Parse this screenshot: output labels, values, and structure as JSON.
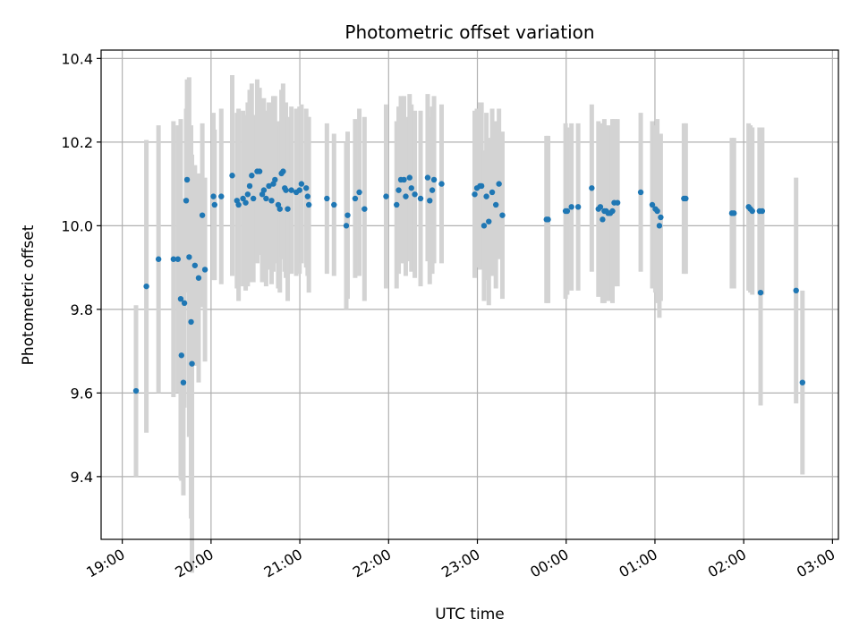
{
  "chart_data": {
    "type": "scatter",
    "title": "Photometric offset variation",
    "xlabel": "UTC time",
    "ylabel": "Photometric offset",
    "x_ticks": [
      {
        "t": 0,
        "label": "19:00"
      },
      {
        "t": 60,
        "label": "20:00"
      },
      {
        "t": 120,
        "label": "21:00"
      },
      {
        "t": 180,
        "label": "22:00"
      },
      {
        "t": 240,
        "label": "23:00"
      },
      {
        "t": 300,
        "label": "00:00"
      },
      {
        "t": 360,
        "label": "01:00"
      },
      {
        "t": 420,
        "label": "02:00"
      },
      {
        "t": 480,
        "label": "03:00"
      }
    ],
    "y_ticks": [
      9.4,
      9.6,
      9.8,
      10.0,
      10.2,
      10.4
    ],
    "xlim": [
      -14.3,
      484
    ],
    "ylim": [
      9.25,
      10.42
    ],
    "grid": true,
    "colors": {
      "points": "#1f77b4",
      "errorbars": "#d3d3d3",
      "grid": "#b0b0b0"
    },
    "points": [
      [
        9.3,
        9.605,
        0.205
      ],
      [
        16.3,
        9.855,
        0.35
      ],
      [
        24.5,
        9.92,
        0.32
      ],
      [
        34.6,
        9.92,
        0.33
      ],
      [
        37.6,
        9.92,
        0.32
      ],
      [
        39.5,
        9.825,
        0.43
      ],
      [
        40.0,
        9.69,
        0.3
      ],
      [
        41.3,
        9.625,
        0.27
      ],
      [
        42.0,
        9.815,
        0.25
      ],
      [
        43.2,
        10.06,
        0.22
      ],
      [
        43.8,
        10.11,
        0.24
      ],
      [
        45.2,
        9.925,
        0.43
      ],
      [
        46.5,
        9.77,
        0.47
      ],
      [
        47.1,
        9.67,
        0.5
      ],
      [
        49.1,
        9.905,
        0.24
      ],
      [
        51.6,
        9.875,
        0.25
      ],
      [
        54.1,
        10.025,
        0.22
      ],
      [
        55.9,
        9.895,
        0.22
      ],
      [
        61.6,
        10.07,
        0.2
      ],
      [
        62.4,
        10.05,
        0.18
      ],
      [
        66.9,
        10.07,
        0.21
      ],
      [
        74.3,
        10.12,
        0.24
      ],
      [
        77.5,
        10.06,
        0.21
      ],
      [
        78.6,
        10.05,
        0.23
      ],
      [
        81.6,
        10.065,
        0.21
      ],
      [
        83.4,
        10.055,
        0.21
      ],
      [
        84.8,
        10.075,
        0.22
      ],
      [
        86.1,
        10.095,
        0.23
      ],
      [
        87.5,
        10.12,
        0.22
      ],
      [
        88.6,
        10.065,
        0.2
      ],
      [
        91.2,
        10.13,
        0.22
      ],
      [
        92.8,
        10.13,
        0.2
      ],
      [
        94.6,
        10.075,
        0.21
      ],
      [
        95.7,
        10.085,
        0.22
      ],
      [
        97.2,
        10.065,
        0.21
      ],
      [
        99.1,
        10.095,
        0.2
      ],
      [
        100.9,
        10.06,
        0.2
      ],
      [
        102.1,
        10.1,
        0.21
      ],
      [
        103.2,
        10.11,
        0.2
      ],
      [
        105.4,
        10.05,
        0.2
      ],
      [
        106.5,
        10.04,
        0.2
      ],
      [
        107.6,
        10.125,
        0.2
      ],
      [
        108.7,
        10.13,
        0.21
      ],
      [
        109.8,
        10.09,
        0.2
      ],
      [
        110.6,
        10.085,
        0.21
      ],
      [
        111.8,
        10.04,
        0.22
      ],
      [
        114.3,
        10.085,
        0.2
      ],
      [
        117.6,
        10.08,
        0.2
      ],
      [
        119.8,
        10.085,
        0.2
      ],
      [
        121.1,
        10.1,
        0.19
      ],
      [
        124.3,
        10.09,
        0.19
      ],
      [
        125.3,
        10.07,
        0.19
      ],
      [
        126.1,
        10.05,
        0.21
      ],
      [
        138.3,
        10.065,
        0.18
      ],
      [
        143.1,
        10.05,
        0.17
      ],
      [
        151.4,
        10.0,
        0.2
      ],
      [
        152.3,
        10.025,
        0.2
      ],
      [
        157.4,
        10.065,
        0.19
      ],
      [
        160.2,
        10.08,
        0.2
      ],
      [
        163.7,
        10.04,
        0.22
      ],
      [
        178.3,
        10.07,
        0.22
      ],
      [
        185.4,
        10.05,
        0.2
      ],
      [
        186.8,
        10.085,
        0.2
      ],
      [
        188.3,
        10.11,
        0.2
      ],
      [
        190.4,
        10.11,
        0.2
      ],
      [
        191.6,
        10.07,
        0.19
      ],
      [
        194.2,
        10.115,
        0.2
      ],
      [
        195.4,
        10.09,
        0.2
      ],
      [
        197.7,
        10.075,
        0.2
      ],
      [
        201.6,
        10.065,
        0.21
      ],
      [
        206.4,
        10.115,
        0.2
      ],
      [
        207.8,
        10.06,
        0.2
      ],
      [
        209.5,
        10.085,
        0.2
      ],
      [
        210.7,
        10.11,
        0.2
      ],
      [
        215.8,
        10.1,
        0.19
      ],
      [
        238.2,
        10.075,
        0.2
      ],
      [
        239.7,
        10.09,
        0.19
      ],
      [
        241.8,
        10.095,
        0.2
      ],
      [
        242.8,
        10.095,
        0.2
      ],
      [
        244.5,
        10.0,
        0.18
      ],
      [
        246.1,
        10.07,
        0.2
      ],
      [
        247.7,
        10.01,
        0.2
      ],
      [
        250.0,
        10.08,
        0.2
      ],
      [
        252.5,
        10.05,
        0.2
      ],
      [
        254.6,
        10.1,
        0.18
      ],
      [
        256.9,
        10.025,
        0.2
      ],
      [
        286.7,
        10.015,
        0.2
      ],
      [
        287.8,
        10.015,
        0.2
      ],
      [
        299.6,
        10.035,
        0.21
      ],
      [
        300.7,
        10.035,
        0.2
      ],
      [
        303.6,
        10.045,
        0.2
      ],
      [
        308.1,
        10.045,
        0.2
      ],
      [
        317.3,
        10.09,
        0.2
      ],
      [
        321.8,
        10.04,
        0.21
      ],
      [
        323.1,
        10.045,
        0.2
      ],
      [
        324.6,
        10.015,
        0.2
      ],
      [
        325.8,
        10.035,
        0.22
      ],
      [
        327.0,
        10.035,
        0.2
      ],
      [
        328.4,
        10.03,
        0.21
      ],
      [
        329.8,
        10.03,
        0.2
      ],
      [
        331.3,
        10.035,
        0.22
      ],
      [
        332.5,
        10.055,
        0.2
      ],
      [
        334.7,
        10.055,
        0.2
      ],
      [
        350.4,
        10.08,
        0.19
      ],
      [
        358.2,
        10.05,
        0.2
      ],
      [
        360.3,
        10.04,
        0.2
      ],
      [
        361.6,
        10.035,
        0.22
      ],
      [
        363.0,
        10.0,
        0.22
      ],
      [
        363.9,
        10.02,
        0.2
      ],
      [
        379.6,
        10.065,
        0.18
      ],
      [
        380.8,
        10.065,
        0.18
      ],
      [
        412.0,
        10.03,
        0.18
      ],
      [
        413.4,
        10.03,
        0.18
      ],
      [
        423.3,
        10.045,
        0.2
      ],
      [
        424.5,
        10.04,
        0.2
      ],
      [
        425.8,
        10.035,
        0.2
      ],
      [
        430.7,
        10.035,
        0.2
      ],
      [
        431.4,
        9.84,
        0.27
      ],
      [
        432.5,
        10.035,
        0.2
      ],
      [
        455.4,
        9.845,
        0.27
      ],
      [
        459.7,
        9.625,
        0.22
      ]
    ]
  }
}
